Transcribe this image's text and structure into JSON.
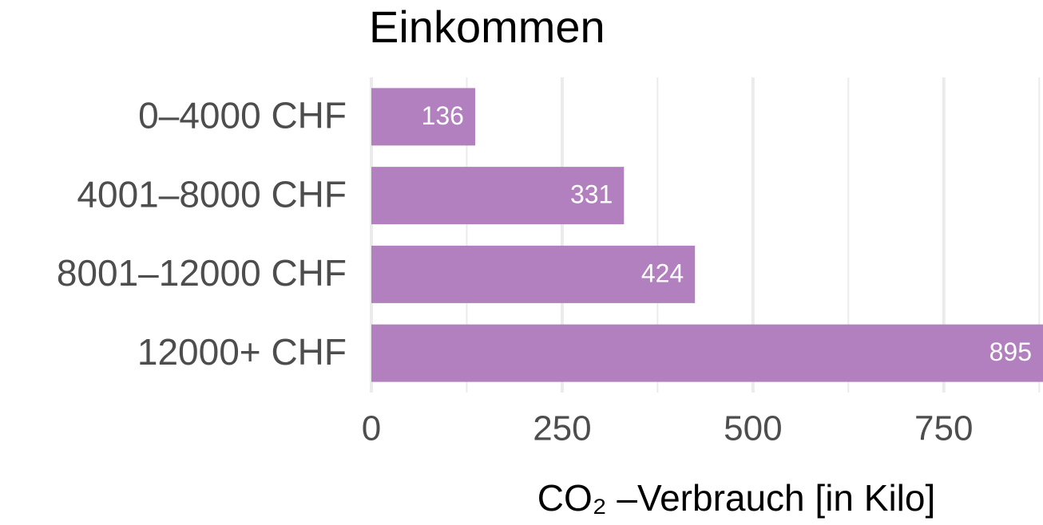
{
  "chart_data": {
    "type": "bar",
    "orientation": "horizontal",
    "title": "Einkommen",
    "categories": [
      "0–4000 CHF",
      "4001–8000 CHF",
      "8001–12000 CHF",
      "12000+ CHF"
    ],
    "values": [
      136,
      331,
      424,
      895
    ],
    "color": "#b27fbf",
    "xlabel": "CO₂ –Verbrauch [in Kilo]",
    "xlim": [
      0,
      880
    ],
    "xticks": [
      0,
      250,
      500,
      750
    ],
    "minor_xticks": [
      125,
      375,
      625,
      875
    ],
    "grid": true
  }
}
